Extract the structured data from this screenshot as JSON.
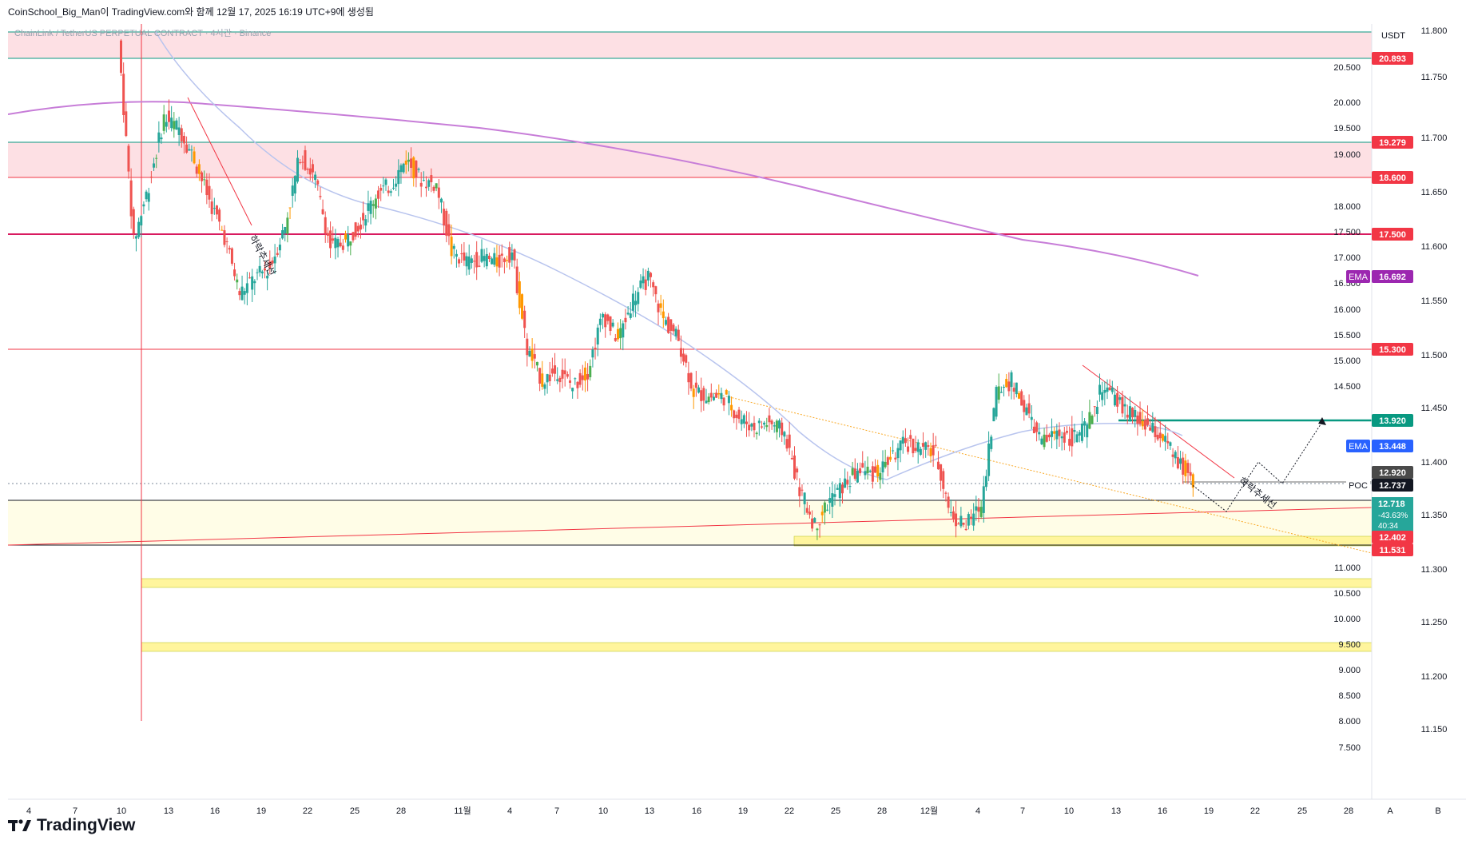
{
  "header": {
    "title": "CoinSchool_Big_Man이 TradingView.com와 함께 12월 17, 2025 16:19 UTC+9에 생성됨",
    "symbol": "ChainLink / TetherUS PERPETUAL CONTRACT · 4시간 · Binance"
  },
  "brand": {
    "name": "TradingView"
  },
  "colors": {
    "up": "#26a69a",
    "down": "#ef5350",
    "candle_alt_up": "#4caf50",
    "candle_alt_down": "#ff9800",
    "red_line": "#f23645",
    "green_line": "#089981",
    "pink_zone": "#f7c1c8",
    "yellow_zone": "#fffde7",
    "yellow_band": "#fff59d",
    "ema_long": "#c77dd8",
    "ema_short": "#b8c4ee"
  },
  "chart_data": {
    "type": "candlestick",
    "left_axis_unit": "USDT",
    "left_axis_ticks": [
      "20.500",
      "20.000",
      "19.500",
      "19.000",
      "18.000",
      "17.500",
      "17.000",
      "16.500",
      "16.000",
      "15.500",
      "15.000",
      "14.500",
      "11.000",
      "10.500",
      "10.000",
      "9.500",
      "9.000",
      "8.500",
      "8.000",
      "7.500"
    ],
    "right_axis_ticks": [
      "11.800",
      "11.750",
      "11.700",
      "11.650",
      "11.600",
      "11.550",
      "11.500",
      "11.450",
      "11.400",
      "11.350",
      "11.300",
      "11.250",
      "11.200",
      "11.150"
    ],
    "x_ticks": [
      "4",
      "7",
      "10",
      "13",
      "16",
      "19",
      "22",
      "25",
      "28",
      "11월",
      "4",
      "7",
      "10",
      "13",
      "16",
      "19",
      "22",
      "25",
      "28",
      "12월",
      "4",
      "7",
      "10",
      "13",
      "16",
      "19",
      "22",
      "25",
      "28"
    ],
    "x_axis_buttons": [
      "A",
      "B"
    ],
    "price_labels": [
      {
        "text": "20.893",
        "color": "#f23645"
      },
      {
        "text": "19.279",
        "color": "#f23645"
      },
      {
        "text": "18.600",
        "color": "#f23645"
      },
      {
        "text": "17.500",
        "color": "#f23645"
      },
      {
        "text": "15.300",
        "color": "#f23645"
      },
      {
        "text": "13.920",
        "color": "#089981"
      },
      {
        "text": "13.448",
        "color": "#2962ff",
        "prefix": "EMA"
      },
      {
        "text": "16.692",
        "color": "#9c27b0",
        "prefix": "EMA"
      },
      {
        "text": "12.920",
        "color": "#4a4a4a"
      },
      {
        "text": "12.737",
        "color": "#131722",
        "prefix": "POC"
      },
      {
        "text": "12.718",
        "color": "#26a69a",
        "extra": [
          "-43.63%",
          "40:34"
        ]
      },
      {
        "text": "12.402",
        "color": "#f23645"
      },
      {
        "text": "11.531",
        "color": "#f23645"
      }
    ],
    "annotations": [
      "하락추세선",
      "하락추세선"
    ],
    "horizontal_levels": [
      20.893,
      19.279,
      18.6,
      17.5,
      15.3,
      13.92,
      12.402,
      11.531
    ],
    "zones": [
      {
        "type": "resistance",
        "from": 20.893,
        "to": 21.5
      },
      {
        "type": "resistance",
        "from": 18.6,
        "to": 19.279
      },
      {
        "type": "support",
        "from": 11.531,
        "to": 12.402
      }
    ],
    "candles_approx": {
      "note": "approximate close path",
      "closes": [
        21.2,
        17.3,
        18.4,
        19.7,
        19.5,
        18.9,
        18.1,
        17.4,
        16.3,
        16.6,
        16.8,
        17.6,
        19.0,
        18.5,
        17.2,
        17.3,
        17.7,
        18.2,
        18.4,
        18.9,
        18.5,
        18.4,
        17.1,
        16.9,
        17.0,
        16.9,
        17.1,
        15.2,
        14.6,
        14.8,
        14.5,
        14.8,
        15.9,
        15.4,
        16.2,
        16.6,
        15.8,
        15.4,
        14.4,
        14.3,
        14.3,
        13.9,
        13.7,
        13.8,
        13.6,
        12.5,
        11.8,
        12.3,
        12.6,
        12.9,
        12.8,
        13.1,
        13.4,
        13.3,
        13.2,
        12.0,
        11.8,
        12.2,
        14.4,
        14.6,
        14.0,
        13.4,
        13.6,
        13.5,
        13.7,
        14.5,
        14.2,
        13.9,
        13.7,
        13.5,
        13.0,
        12.7
      ]
    }
  }
}
